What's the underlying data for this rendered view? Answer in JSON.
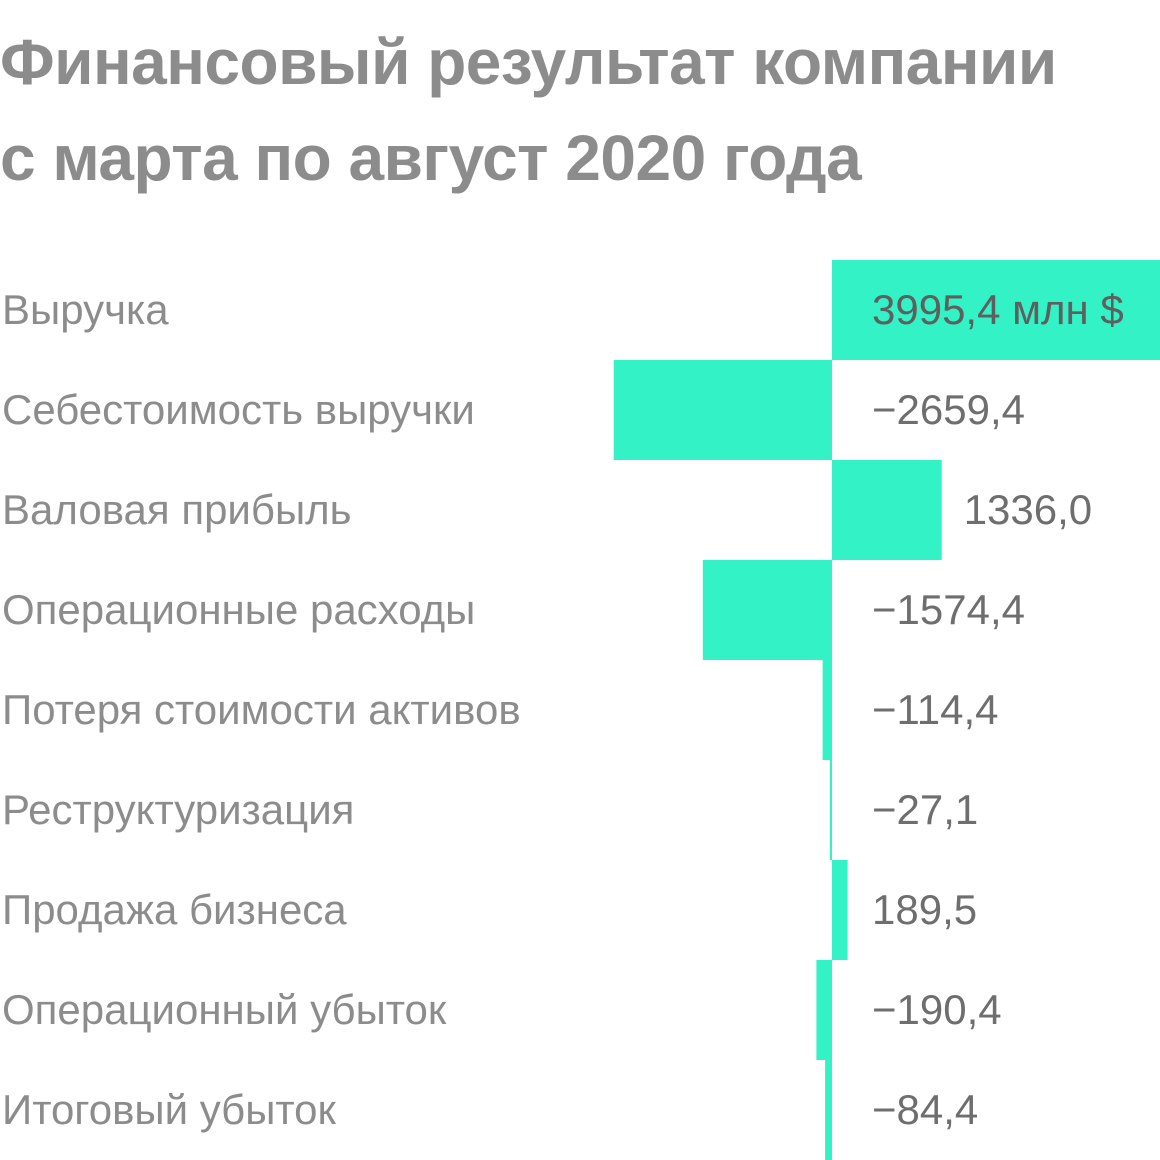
{
  "title_lines": [
    "Финансовый результат компании",
    "с марта по август 2020 года"
  ],
  "chart_data": {
    "type": "bar",
    "orientation": "horizontal",
    "title": "Финансовый результат компании с марта по август 2020 года",
    "categories": [
      "Выручка",
      "Себестоимость выручки",
      "Валовая прибыль",
      "Операционные расходы",
      "Потеря стоимости активов",
      "Реструктуризация",
      "Продажа бизнеса",
      "Операционный убыток",
      "Итоговый убыток"
    ],
    "values": [
      3995.4,
      -2659.4,
      1336.0,
      -1574.4,
      -114.4,
      -27.1,
      189.5,
      -190.4,
      -84.4
    ],
    "value_labels": [
      "3995,4 млн $",
      "−2659,4",
      "1336,0",
      "−1574,4",
      "−114,4",
      "−27,1",
      "189,5",
      "−190,4",
      "−84,4"
    ],
    "bar_color": "#33f2c5",
    "text_color": "#8c8c8c",
    "grid": false,
    "legend": false
  }
}
